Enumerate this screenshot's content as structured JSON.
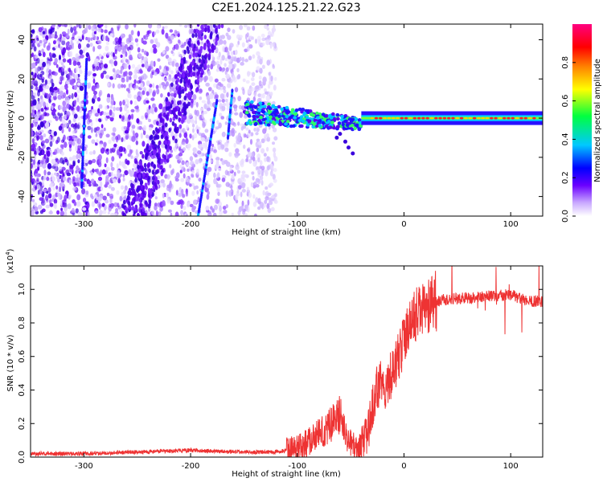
{
  "title": "C2E1.2024.125.21.22.G23",
  "chart_data": [
    {
      "type": "heatmap",
      "xlabel": "Height of straight line (km)",
      "ylabel": "Frequency (Hz)",
      "xlim": [
        -350,
        130
      ],
      "ylim": [
        -50,
        48
      ],
      "xticks": [
        "-300",
        "-200",
        "-100",
        "0",
        "100"
      ],
      "yticks": [
        "-40",
        "-20",
        "0",
        "20",
        "40"
      ],
      "colorbar": {
        "label": "Normalized spectral amplitude",
        "range": [
          0.0,
          1.0
        ],
        "ticks": [
          "0.0",
          "0.2",
          "0.4",
          "0.6",
          "0.8"
        ],
        "colors": [
          "#ffffff",
          "#b58cff",
          "#6a00ff",
          "#0000ff",
          "#00c8ff",
          "#00ff40",
          "#ffff00",
          "#ff8000",
          "#ff0000",
          "#ff0080"
        ]
      },
      "features": {
        "background_scatter_x_range": [
          -350,
          -120
        ],
        "stripe_x_km": [
          -302,
          -193,
          -165
        ],
        "tone_segments": [
          {
            "x": [
              -150,
              -40
            ],
            "frequency_hz": 2,
            "amplitude": 0.45
          },
          {
            "x": [
              -40,
              130
            ],
            "frequency_hz": 0,
            "amplitude": 0.9
          }
        ]
      }
    },
    {
      "type": "line",
      "xlabel": "Height of straight line (km)",
      "ylabel": "SNR (10 * v/v)",
      "y_scale_label": "(x10",
      "y_scale_exp": "4",
      "y_scale_close": ")",
      "xlim": [
        -350,
        130
      ],
      "ylim": [
        0,
        1.14
      ],
      "xticks": [
        "-300",
        "-200",
        "-100",
        "0",
        "100"
      ],
      "yticks": [
        "0.0",
        "0.2",
        "0.4",
        "0.6",
        "0.8",
        "1.0"
      ],
      "color": "#ee3333",
      "series": [
        {
          "x": [
            -350,
            -300,
            -250,
            -200,
            -150,
            -120,
            -100,
            -90,
            -80,
            -70,
            -65,
            -60,
            -55,
            -50,
            -45,
            -40,
            -35,
            -30,
            -25,
            -22,
            -20,
            -15,
            -10,
            -5,
            0,
            5,
            10,
            20,
            30,
            40,
            60,
            80,
            100,
            110,
            120,
            130
          ],
          "values": [
            0.02,
            0.02,
            0.03,
            0.04,
            0.03,
            0.03,
            0.05,
            0.09,
            0.14,
            0.18,
            0.24,
            0.25,
            0.15,
            0.08,
            0.05,
            0.06,
            0.12,
            0.28,
            0.42,
            0.45,
            0.38,
            0.45,
            0.52,
            0.6,
            0.7,
            0.78,
            0.84,
            0.89,
            0.93,
            0.94,
            0.95,
            0.96,
            0.97,
            0.94,
            0.93,
            0.93
          ]
        }
      ]
    }
  ]
}
